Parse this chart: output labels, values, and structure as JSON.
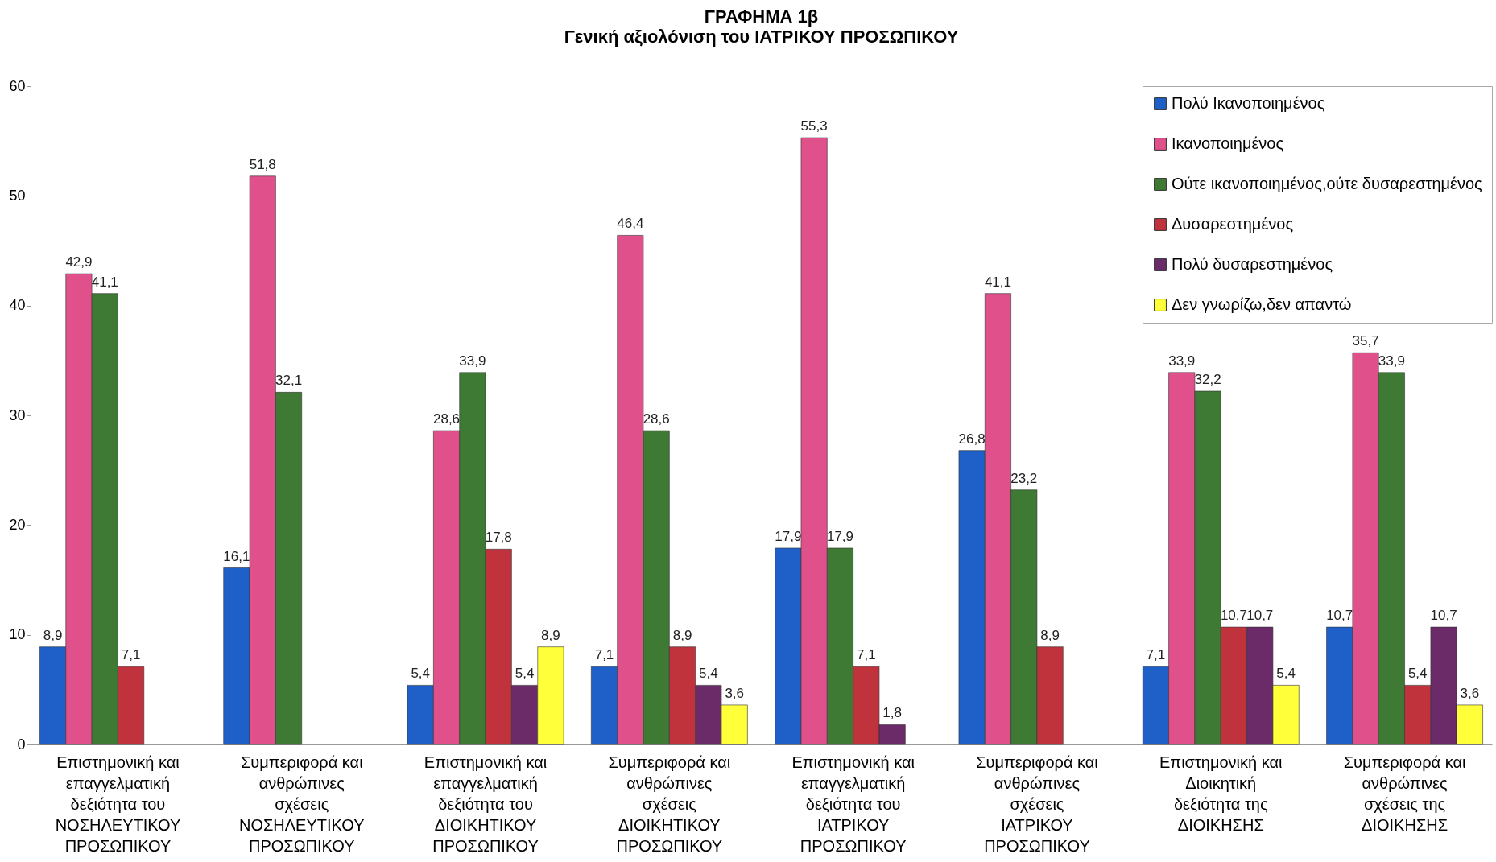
{
  "chart_data": {
    "type": "bar",
    "title": "ΓΡΑΦΗΜΑ 1β",
    "subtitle": "Γενική αξιολόνιση του ΙΑΤΡΙΚΟΥ ΠΡΟΣΩΠΙΚΟΥ",
    "categories": [
      "Επιστημονική και\nεπαγγελματική\nδεξιότητα του\nΝΟΣΗΛΕΥΤΙΚΟΥ\nΠΡΟΣΩΠΙΚΟΥ",
      "Συμπεριφορά και\nανθρώπινες\nσχέσεις\nΝΟΣΗΛΕΥΤΙΚΟΥ\nΠΡΟΣΩΠΙΚΟΥ",
      "Επιστημονική και\nεπαγγελματική\nδεξιότητα του\nΔΙΟΙΚΗΤΙΚΟΥ\nΠΡΟΣΩΠΙΚΟΥ",
      "Συμπεριφορά και\nανθρώπινες\nσχέσεις\nΔΙΟΙΚΗΤΙΚΟΥ\nΠΡΟΣΩΠΙΚΟΥ",
      "Επιστημονική και\nεπαγγελματική\nδεξιότητα του\nΙΑΤΡΙΚΟΥ\nΠΡΟΣΩΠΙΚΟΥ",
      "Συμπεριφορά και\nανθρώπινες\nσχέσεις\nΙΑΤΡΙΚΟΥ\nΠΡΟΣΩΠΙΚΟΥ",
      "Επιστημονική και\nΔιοικητική\nδεξιότητα της\nΔΙΟΙΚΗΣΗΣ",
      "Συμπεριφορά  και\nανθρώπινες\nσχέσεις της\nΔΙΟΙΚΗΣΗΣ"
    ],
    "series": [
      {
        "name": "Πολύ Ικανοποιημένος",
        "color": "#1f5fc8",
        "values": [
          8.9,
          16.1,
          5.4,
          7.1,
          17.9,
          26.8,
          7.1,
          10.7
        ],
        "value_labels": [
          "8,9",
          "16,1",
          "5,4",
          "7,1",
          "17,9",
          "26,8",
          "7,1",
          "10,7"
        ]
      },
      {
        "name": "Ικανοποιημένος",
        "color": "#e0508a",
        "values": [
          42.9,
          51.8,
          28.6,
          46.4,
          55.3,
          41.1,
          33.9,
          35.7
        ],
        "value_labels": [
          "42,9",
          "51,8",
          "28,6",
          "46,4",
          "55,3",
          "41,1",
          "33,9",
          "35,7"
        ]
      },
      {
        "name": "Ούτε ικανοποιημένος,ούτε δυσαρεστημένος",
        "color": "#3f7a35",
        "values": [
          41.1,
          32.1,
          33.9,
          28.6,
          17.9,
          23.2,
          32.2,
          33.9
        ],
        "value_labels": [
          "41,1",
          "32,1",
          "33,9",
          "28,6",
          "17,9",
          "23,2",
          "32,2",
          "33,9"
        ]
      },
      {
        "name": "Δυσαρεστημένος",
        "color": "#c0333c",
        "values": [
          7.1,
          null,
          17.8,
          8.9,
          7.1,
          8.9,
          10.7,
          5.4
        ],
        "value_labels": [
          "7,1",
          null,
          "17,8",
          "8,9",
          "7,1",
          "8,9",
          "10,7",
          "5,4"
        ]
      },
      {
        "name": "Πολύ δυσαρεστημένος",
        "color": "#6a2b68",
        "values": [
          null,
          null,
          5.4,
          5.4,
          1.8,
          null,
          10.7,
          10.7
        ],
        "value_labels": [
          null,
          null,
          "5,4",
          "5,4",
          "1,8",
          null,
          "10,7",
          "10,7"
        ]
      },
      {
        "name": "Δεν γνωρίζω,δεν απαντώ",
        "color": "#ffff3a",
        "values": [
          null,
          null,
          8.9,
          3.6,
          null,
          null,
          5.4,
          3.6
        ],
        "value_labels": [
          null,
          null,
          "8,9",
          "3,6",
          null,
          null,
          "5,4",
          "3,6"
        ]
      }
    ],
    "ylim": [
      0,
      60
    ],
    "yticks": [
      0,
      10,
      20,
      30,
      40,
      50,
      60
    ],
    "legend": "top right"
  }
}
